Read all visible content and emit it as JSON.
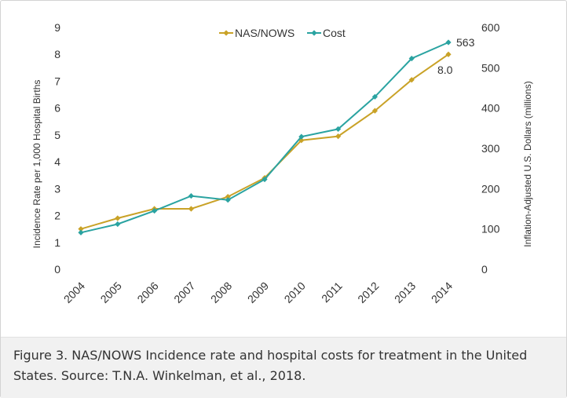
{
  "caption": "Figure 3. NAS/NOWS Incidence rate and hospital costs for treatment in the United States. Source: T.N.A. Winkelman, et al., 2018.",
  "chart_data": {
    "type": "line",
    "title": "",
    "x": [
      "2004",
      "2005",
      "2006",
      "2007",
      "2008",
      "2009",
      "2010",
      "2011",
      "2012",
      "2013",
      "2014"
    ],
    "series": [
      {
        "name": "NAS/NOWS",
        "axis": "left",
        "color": "#c9a227",
        "values": [
          1.5,
          1.9,
          2.25,
          2.25,
          2.7,
          3.4,
          4.8,
          4.95,
          5.9,
          7.05,
          8.0
        ]
      },
      {
        "name": "Cost",
        "axis": "right",
        "color": "#2aa3a1",
        "values": [
          91,
          112,
          145,
          182,
          172,
          223,
          329,
          348,
          428,
          523,
          563
        ]
      }
    ],
    "ylabel_left": "Incidence Rate per 1,000 Hospital Births",
    "ylim_left": [
      0,
      9
    ],
    "yticks_left": [
      "0",
      "1",
      "2",
      "3",
      "4",
      "5",
      "6",
      "7",
      "8",
      "9"
    ],
    "ylabel_right": "Inflation-Adjusted U.S. Dollars (millions)",
    "ylim_right": [
      0,
      600
    ],
    "yticks_right": [
      "0",
      "100",
      "200",
      "300",
      "400",
      "500",
      "600"
    ],
    "annotations": [
      {
        "text": "563",
        "series": "Cost",
        "x": "2014"
      },
      {
        "text": "8.0",
        "series": "NAS/NOWS",
        "x": "2014"
      }
    ],
    "legend_position": "top-center",
    "grid": false
  }
}
